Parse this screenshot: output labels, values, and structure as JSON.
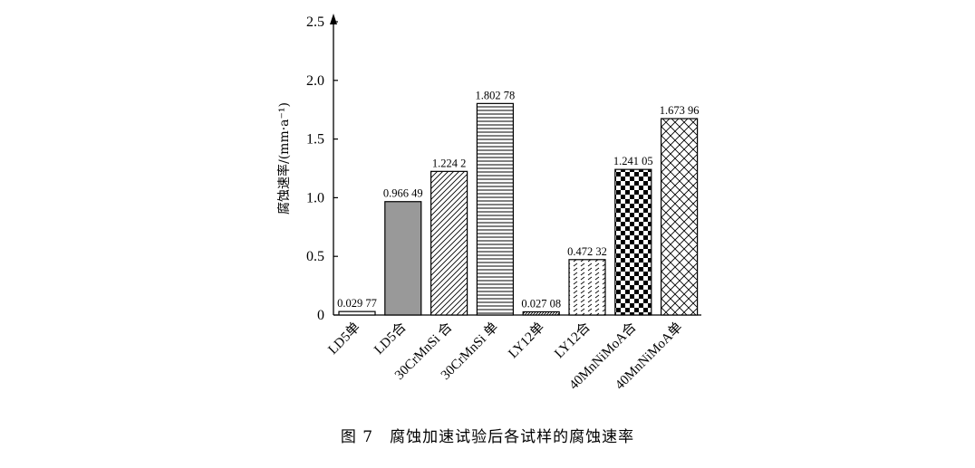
{
  "caption": "图 7　腐蚀加速试验后各试样的腐蚀速率",
  "chart_data": {
    "type": "bar",
    "title": "",
    "xlabel": "",
    "ylabel": "腐蚀速率/(mm·a⁻¹)",
    "ylim": [
      0,
      2.5
    ],
    "yticks": [
      "0",
      "0.5",
      "1.0",
      "1.5",
      "2.0",
      "2.5"
    ],
    "categories": [
      "LD5单",
      "LD5合",
      "30CrMnSi 合",
      "30CrMnSi 单",
      "LY12单",
      "LY12合",
      "40MnNiMoA合",
      "40MnNiMoA单"
    ],
    "values": [
      0.02977,
      0.96649,
      1.2242,
      1.80278,
      0.02708,
      0.47232,
      1.24105,
      1.67396
    ],
    "value_labels": [
      "0.029 77",
      "0.966 49",
      "1.224 2",
      "1.802 78",
      "0.027 08",
      "0.472 32",
      "1.241 05",
      "1.673 96"
    ],
    "fills": [
      "empty",
      "gray",
      "diagonal",
      "horizontal",
      "dense-diagonal",
      "dashes",
      "checker",
      "lattice"
    ],
    "colors": {
      "gray": "#999999",
      "black": "#000000"
    },
    "grid": false,
    "legend": "none"
  }
}
